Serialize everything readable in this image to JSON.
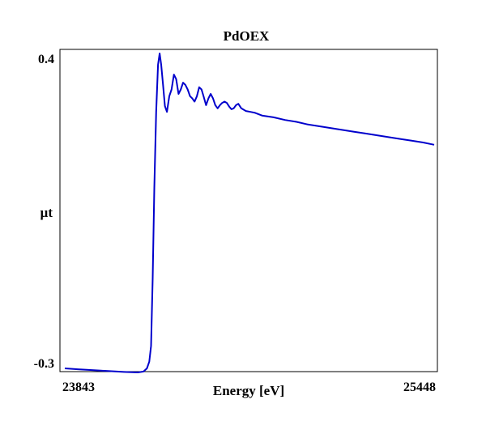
{
  "chart_data": {
    "type": "line",
    "title": "PdOEX",
    "xlabel": "Energy [eV]",
    "ylabel": "µt",
    "xlim": [
      23843,
      25448
    ],
    "ylim": [
      -0.3,
      0.4
    ],
    "x_ticks": [
      "23843",
      "25448"
    ],
    "y_ticks": [
      "0.4",
      "-0.3"
    ],
    "grid": false,
    "legend": "none",
    "series": [
      {
        "color": "#0000cc",
        "x": [
          23843,
          23900,
          24000,
          24100,
          24160,
          24185,
          24200,
          24210,
          24218,
          24225,
          24232,
          24240,
          24248,
          24255,
          24262,
          24270,
          24278,
          24287,
          24297,
          24307,
          24317,
          24327,
          24337,
          24347,
          24357,
          24367,
          24377,
          24387,
          24397,
          24407,
          24417,
          24427,
          24437,
          24447,
          24457,
          24467,
          24477,
          24487,
          24497,
          24507,
          24517,
          24527,
          24537,
          24547,
          24557,
          24567,
          24577,
          24587,
          24597,
          24610,
          24630,
          24650,
          24670,
          24700,
          24750,
          24800,
          24850,
          24900,
          24950,
          25000,
          25050,
          25100,
          25150,
          25200,
          25250,
          25300,
          25350,
          25400,
          25448
        ],
        "y": [
          -0.3,
          -0.302,
          -0.305,
          -0.308,
          -0.309,
          -0.307,
          -0.3,
          -0.285,
          -0.25,
          -0.1,
          0.1,
          0.27,
          0.375,
          0.4,
          0.375,
          0.33,
          0.283,
          0.27,
          0.305,
          0.32,
          0.353,
          0.343,
          0.31,
          0.32,
          0.335,
          0.33,
          0.32,
          0.305,
          0.3,
          0.293,
          0.305,
          0.325,
          0.32,
          0.303,
          0.285,
          0.3,
          0.31,
          0.3,
          0.285,
          0.278,
          0.285,
          0.29,
          0.293,
          0.29,
          0.282,
          0.276,
          0.278,
          0.285,
          0.288,
          0.278,
          0.272,
          0.27,
          0.268,
          0.262,
          0.258,
          0.252,
          0.248,
          0.242,
          0.238,
          0.234,
          0.23,
          0.226,
          0.222,
          0.218,
          0.214,
          0.21,
          0.206,
          0.202,
          0.197
        ]
      }
    ]
  }
}
